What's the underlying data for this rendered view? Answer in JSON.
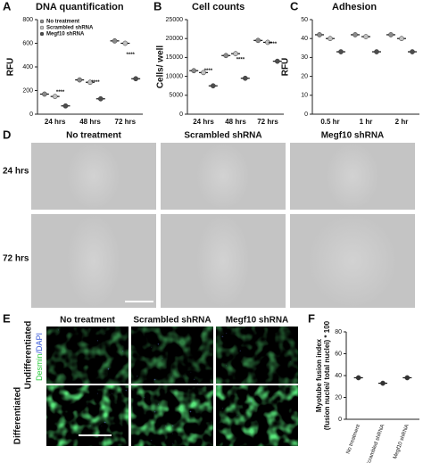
{
  "chart_data": [
    {
      "panel": "A",
      "type": "dot",
      "title": "DNA quantification",
      "y_label": "RFU",
      "categories": [
        "24 hrs",
        "48 hrs",
        "72 hrs"
      ],
      "series": [
        {
          "name": "No treatment",
          "color": "#8a8a8a",
          "values": [
            170,
            290,
            620
          ]
        },
        {
          "name": "Scrambled shRNA",
          "color": "#c0c0c0",
          "values": [
            150,
            270,
            600
          ]
        },
        {
          "name": "Megf10 shRNA",
          "color": "#4d4d4d",
          "values": [
            70,
            130,
            300
          ]
        }
      ],
      "ylim": [
        0,
        800
      ],
      "yticks": [
        0,
        200,
        400,
        600,
        800
      ],
      "annotations": [
        "****",
        "****",
        "****"
      ],
      "legend": "upper left"
    },
    {
      "panel": "B",
      "type": "dot",
      "title": "Cell counts",
      "y_label": "Cells/ well",
      "categories": [
        "24 hrs",
        "48 hrs",
        "72 hrs"
      ],
      "series": [
        {
          "color": "#8a8a8a",
          "values": [
            11500,
            15500,
            19500
          ]
        },
        {
          "color": "#c0c0c0",
          "values": [
            11000,
            16000,
            19000
          ]
        },
        {
          "color": "#4d4d4d",
          "values": [
            7500,
            9500,
            14000
          ]
        }
      ],
      "ylim": [
        0,
        25000
      ],
      "yticks": [
        0,
        5000,
        10000,
        15000,
        20000,
        25000
      ],
      "annotations": [
        "****",
        "****",
        "****"
      ]
    },
    {
      "panel": "C",
      "type": "dot",
      "title": "Adhesion",
      "y_label": "RFU",
      "categories": [
        "0.5 hr",
        "1 hr",
        "2 hr"
      ],
      "series": [
        {
          "color": "#8a8a8a",
          "values": [
            42,
            42,
            42
          ]
        },
        {
          "color": "#c0c0c0",
          "values": [
            40,
            41,
            40
          ]
        },
        {
          "color": "#4d4d4d",
          "values": [
            33,
            33,
            33
          ]
        }
      ],
      "ylim": [
        0,
        50
      ],
      "yticks": [
        0,
        10,
        20,
        30,
        40,
        50
      ]
    },
    {
      "panel": "F",
      "type": "dot",
      "y_label": [
        "Myotube fusion index",
        "(fusion nuclei/ total nuclei) * 100"
      ],
      "categories": [
        "No treatment",
        "Scrambled shRNA",
        "Megf10 shRNA"
      ],
      "values": [
        38,
        33,
        38
      ],
      "color": "#333333",
      "ylim": [
        0,
        80
      ],
      "yticks": [
        0,
        20,
        40,
        60,
        80
      ]
    }
  ],
  "panel_d": {
    "panel": "D",
    "columns": [
      "No treatment",
      "Scrambled shRNA",
      "Megf10 shRNA"
    ],
    "rows": [
      "24 hrs",
      "72 hrs"
    ]
  },
  "panel_e": {
    "panel": "E",
    "columns": [
      "No treatment",
      "Scrambled shRNA",
      "Megf10 shRNA"
    ],
    "rows": [
      "Undifferentiated",
      "Differentiated"
    ],
    "stain": [
      "Desmin",
      "/DAPI"
    ]
  }
}
